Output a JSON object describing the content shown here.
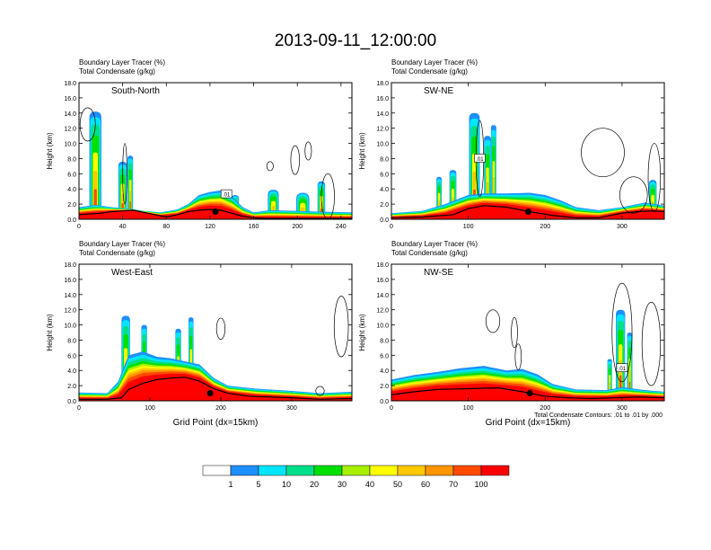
{
  "title": "2013-09-11_12:00:00",
  "colors": {
    "scale": [
      "#ffffff",
      "#1e8fff",
      "#00e6ff",
      "#00e08a",
      "#00e000",
      "#a8f000",
      "#ffff00",
      "#ffc800",
      "#ff9600",
      "#ff4a00",
      "#ff0000"
    ],
    "contour": "#000000",
    "terrain": "#000000",
    "fill_outline": "#5f9b3c"
  },
  "colorbar": {
    "colors": [
      "#ffffff",
      "#1e8fff",
      "#00e6ff",
      "#00e08a",
      "#00e000",
      "#a8f000",
      "#ffff00",
      "#ffc800",
      "#ff9600",
      "#ff4a00",
      "#ff0000"
    ],
    "labels": [
      "1",
      "5",
      "10",
      "20",
      "30",
      "40",
      "50",
      "60",
      "70",
      "100"
    ]
  },
  "footnote": "Total Condensate Contours: .01 to .01 by .000",
  "chart_data": [
    {
      "type": "heatmap",
      "name": "South-North",
      "subtitle_lines": [
        "Boundary Layer Tracer   (%)",
        "Total Condensate   (g/kg)"
      ],
      "ylabel": "Height (km)",
      "xlabel": "",
      "xlim": [
        0,
        250
      ],
      "ylim": [
        0,
        18
      ],
      "xticks": [
        0,
        40,
        80,
        120,
        160,
        200,
        240
      ],
      "yticks": [
        "0.0",
        "2.0",
        "4.0",
        "6.0",
        "8.0",
        "10.0",
        "12.0",
        "14.0",
        "16.0",
        "18.0"
      ],
      "contour_label": ".01",
      "terrain": [
        [
          0,
          0.6
        ],
        [
          10,
          0.7
        ],
        [
          20,
          0.8
        ],
        [
          30,
          1.0
        ],
        [
          40,
          1.1
        ],
        [
          50,
          1.2
        ],
        [
          60,
          0.9
        ],
        [
          70,
          0.6
        ],
        [
          80,
          0.3
        ],
        [
          90,
          0.6
        ],
        [
          100,
          1.0
        ],
        [
          110,
          1.2
        ],
        [
          120,
          1.3
        ],
        [
          130,
          1.2
        ],
        [
          140,
          0.8
        ],
        [
          150,
          0.4
        ],
        [
          160,
          0.2
        ],
        [
          170,
          0.1
        ],
        [
          180,
          0.1
        ],
        [
          200,
          0.1
        ],
        [
          220,
          0.1
        ],
        [
          250,
          0.1
        ]
      ],
      "base_layer": [
        [
          0,
          1.6
        ],
        [
          15,
          1.9
        ],
        [
          30,
          1.6
        ],
        [
          45,
          1.4
        ],
        [
          60,
          1.1
        ],
        [
          75,
          0.9
        ],
        [
          90,
          1.3
        ],
        [
          100,
          2.0
        ],
        [
          110,
          3.2
        ],
        [
          120,
          3.6
        ],
        [
          130,
          3.8
        ],
        [
          140,
          3.0
        ],
        [
          150,
          1.6
        ],
        [
          160,
          0.9
        ],
        [
          175,
          1.2
        ],
        [
          200,
          1.1
        ],
        [
          220,
          1.0
        ],
        [
          250,
          0.9
        ]
      ],
      "plumes": [
        {
          "x": 15,
          "w": 11,
          "h": 14.2
        },
        {
          "x": 40,
          "w": 8,
          "h": 7.6
        },
        {
          "x": 47,
          "w": 5,
          "h": 8.4
        },
        {
          "x": 143,
          "w": 7,
          "h": 3.2
        },
        {
          "x": 178,
          "w": 10,
          "h": 3.9
        },
        {
          "x": 205,
          "w": 12,
          "h": 3.5
        },
        {
          "x": 222,
          "w": 7,
          "h": 5.0
        }
      ],
      "contours": [
        {
          "cx": 8,
          "cy": 12.5,
          "rx": 7,
          "ry": 2.2
        },
        {
          "cx": 175,
          "cy": 7.0,
          "rx": 3,
          "ry": 0.6
        },
        {
          "cx": 210,
          "cy": 9.0,
          "rx": 3,
          "ry": 1.2
        },
        {
          "cx": 198,
          "cy": 7.8,
          "rx": 4,
          "ry": 1.9
        },
        {
          "cx": 228,
          "cy": 3.0,
          "rx": 6,
          "ry": 3.0
        },
        {
          "cx": 42,
          "cy": 6.0,
          "rx": 2,
          "ry": 4.0
        }
      ],
      "marker": {
        "x": 125,
        "y": 1.0
      },
      "label_box": {
        "x": 135,
        "y": 3.3
      }
    },
    {
      "type": "heatmap",
      "name": "SW-NE",
      "subtitle_lines": [
        "Boundary Layer Tracer   (%)",
        "Total Condensate   (g/kg)"
      ],
      "ylabel": "Height (km)",
      "xlabel": "",
      "xlim": [
        0,
        355
      ],
      "ylim": [
        0,
        18
      ],
      "xticks": [
        0,
        100,
        200,
        300
      ],
      "yticks": [
        "0.0",
        "2.0",
        "4.0",
        "6.0",
        "8.0",
        "10.0",
        "12.0",
        "14.0",
        "16.0",
        "18.0"
      ],
      "contour_label": ".01",
      "terrain": [
        [
          0,
          0.2
        ],
        [
          40,
          0.3
        ],
        [
          80,
          0.6
        ],
        [
          100,
          1.4
        ],
        [
          120,
          1.8
        ],
        [
          150,
          1.6
        ],
        [
          180,
          1.0
        ],
        [
          210,
          0.5
        ],
        [
          240,
          0.2
        ],
        [
          270,
          0.2
        ],
        [
          300,
          0.8
        ],
        [
          320,
          1.0
        ],
        [
          340,
          1.1
        ],
        [
          355,
          1.0
        ]
      ],
      "base_layer": [
        [
          0,
          0.8
        ],
        [
          40,
          1.1
        ],
        [
          70,
          2.0
        ],
        [
          100,
          3.2
        ],
        [
          120,
          3.4
        ],
        [
          150,
          3.4
        ],
        [
          180,
          3.5
        ],
        [
          200,
          3.2
        ],
        [
          220,
          2.5
        ],
        [
          240,
          1.6
        ],
        [
          270,
          1.2
        ],
        [
          300,
          1.6
        ],
        [
          330,
          2.2
        ],
        [
          355,
          1.8
        ]
      ],
      "plumes": [
        {
          "x": 108,
          "w": 14,
          "h": 14.0
        },
        {
          "x": 125,
          "w": 9,
          "h": 11.0
        },
        {
          "x": 133,
          "w": 7,
          "h": 12.4
        },
        {
          "x": 62,
          "w": 7,
          "h": 5.6
        },
        {
          "x": 80,
          "w": 9,
          "h": 6.5
        },
        {
          "x": 340,
          "w": 10,
          "h": 5.2
        }
      ],
      "contours": [
        {
          "cx": 275,
          "cy": 8.8,
          "rx": 28,
          "ry": 3.2
        },
        {
          "cx": 315,
          "cy": 3.2,
          "rx": 18,
          "ry": 2.4
        },
        {
          "cx": 342,
          "cy": 5.5,
          "rx": 8,
          "ry": 4.5
        },
        {
          "cx": 115,
          "cy": 8.0,
          "rx": 5,
          "ry": 5.0
        }
      ],
      "marker": {
        "x": 178,
        "y": 1.0
      },
      "label_box": {
        "x": 115,
        "y": 8.0
      }
    },
    {
      "type": "heatmap",
      "name": "West-East",
      "subtitle_lines": [
        "Boundary Layer Tracer   (%)",
        "Total Condensate   (g/kg)"
      ],
      "ylabel": "Height (km)",
      "xlabel": "Grid Point (dx=15km)",
      "xlim": [
        0,
        385
      ],
      "ylim": [
        0,
        18
      ],
      "xticks": [
        0,
        100,
        200,
        300
      ],
      "yticks": [
        "0.0",
        "2.0",
        "4.0",
        "6.0",
        "8.0",
        "10.0",
        "12.0",
        "14.0",
        "16.0",
        "18.0"
      ],
      "contour_label": ".01",
      "terrain": [
        [
          0,
          0.2
        ],
        [
          40,
          0.2
        ],
        [
          60,
          0.4
        ],
        [
          70,
          1.5
        ],
        [
          90,
          2.3
        ],
        [
          110,
          2.8
        ],
        [
          130,
          3.0
        ],
        [
          150,
          3.1
        ],
        [
          170,
          2.6
        ],
        [
          190,
          1.6
        ],
        [
          210,
          1.0
        ],
        [
          240,
          0.6
        ],
        [
          270,
          0.5
        ],
        [
          300,
          0.4
        ],
        [
          340,
          0.2
        ],
        [
          385,
          0.3
        ]
      ],
      "base_layer": [
        [
          0,
          1.1
        ],
        [
          40,
          1.0
        ],
        [
          55,
          2.5
        ],
        [
          70,
          6.0
        ],
        [
          90,
          6.5
        ],
        [
          110,
          5.8
        ],
        [
          130,
          5.6
        ],
        [
          150,
          5.2
        ],
        [
          170,
          4.8
        ],
        [
          190,
          3.0
        ],
        [
          210,
          2.0
        ],
        [
          250,
          1.6
        ],
        [
          300,
          1.3
        ],
        [
          340,
          1.0
        ],
        [
          385,
          1.2
        ]
      ],
      "plumes": [
        {
          "x": 66,
          "w": 12,
          "h": 11.2
        },
        {
          "x": 92,
          "w": 8,
          "h": 10.0
        },
        {
          "x": 140,
          "w": 8,
          "h": 9.5
        },
        {
          "x": 158,
          "w": 7,
          "h": 11.0
        }
      ],
      "contours": [
        {
          "cx": 200,
          "cy": 9.5,
          "rx": 6,
          "ry": 1.4
        },
        {
          "cx": 370,
          "cy": 9.8,
          "rx": 10,
          "ry": 4.0
        },
        {
          "cx": 340,
          "cy": 1.3,
          "rx": 6,
          "ry": 0.6
        }
      ],
      "marker": {
        "x": 185,
        "y": 1.0
      },
      "label_box": null
    },
    {
      "type": "heatmap",
      "name": "NW-SE",
      "subtitle_lines": [
        "Boundary Layer Tracer   (%)",
        "Total Condensate   (g/kg)"
      ],
      "ylabel": "Height (km)",
      "xlabel": "Grid Point (dx=15km)",
      "xlim": [
        0,
        355
      ],
      "ylim": [
        0,
        18
      ],
      "xticks": [
        0,
        100,
        200,
        300
      ],
      "yticks": [
        "0.0",
        "2.0",
        "4.0",
        "6.0",
        "8.0",
        "10.0",
        "12.0",
        "14.0",
        "16.0",
        "18.0"
      ],
      "contour_label": ".01",
      "terrain": [
        [
          0,
          0.8
        ],
        [
          30,
          1.2
        ],
        [
          60,
          1.5
        ],
        [
          100,
          1.6
        ],
        [
          140,
          1.7
        ],
        [
          170,
          1.2
        ],
        [
          200,
          0.6
        ],
        [
          230,
          0.4
        ],
        [
          260,
          0.3
        ],
        [
          290,
          0.4
        ],
        [
          320,
          0.5
        ],
        [
          355,
          0.4
        ]
      ],
      "base_layer": [
        [
          0,
          2.8
        ],
        [
          30,
          3.4
        ],
        [
          60,
          3.8
        ],
        [
          90,
          4.3
        ],
        [
          120,
          4.6
        ],
        [
          150,
          4.0
        ],
        [
          170,
          4.2
        ],
        [
          190,
          3.5
        ],
        [
          210,
          2.2
        ],
        [
          240,
          1.5
        ],
        [
          280,
          1.4
        ],
        [
          300,
          1.8
        ],
        [
          330,
          1.4
        ],
        [
          355,
          1.2
        ]
      ],
      "plumes": [
        {
          "x": 298,
          "w": 12,
          "h": 12.0
        },
        {
          "x": 310,
          "w": 7,
          "h": 9.0
        },
        {
          "x": 284,
          "w": 6,
          "h": 5.5
        }
      ],
      "contours": [
        {
          "cx": 132,
          "cy": 10.5,
          "rx": 9,
          "ry": 1.5
        },
        {
          "cx": 160,
          "cy": 9.0,
          "rx": 4,
          "ry": 2.0
        },
        {
          "cx": 165,
          "cy": 5.8,
          "rx": 4,
          "ry": 1.7
        },
        {
          "cx": 300,
          "cy": 9.0,
          "rx": 13,
          "ry": 6.5
        },
        {
          "cx": 338,
          "cy": 7.5,
          "rx": 12,
          "ry": 5.5
        }
      ],
      "marker": {
        "x": 180,
        "y": 1.0
      },
      "label_box": {
        "x": 300,
        "y": 4.3
      }
    }
  ]
}
